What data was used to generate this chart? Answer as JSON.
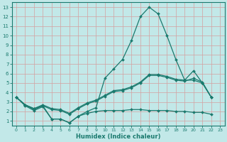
{
  "xlabel": "Humidex (Indice chaleur)",
  "x": [
    0,
    1,
    2,
    3,
    4,
    5,
    6,
    7,
    8,
    9,
    10,
    11,
    12,
    13,
    14,
    15,
    16,
    17,
    18,
    19,
    20,
    21,
    22,
    23
  ],
  "line_peak": [
    3.5,
    2.7,
    2.2,
    2.6,
    1.2,
    1.2,
    0.8,
    1.5,
    2.0,
    2.4,
    5.5,
    6.5,
    7.5,
    9.5,
    12.0,
    13.0,
    12.3,
    10.0,
    7.5,
    5.3,
    6.3,
    5.0,
    3.5,
    null
  ],
  "line_mid1": [
    3.5,
    2.7,
    2.3,
    2.6,
    2.2,
    2.1,
    1.7,
    2.3,
    2.8,
    3.1,
    3.6,
    4.1,
    4.2,
    4.5,
    5.0,
    5.8,
    5.8,
    5.6,
    5.3,
    5.2,
    5.5,
    5.1,
    3.5,
    null
  ],
  "line_mid2": [
    3.5,
    2.7,
    2.3,
    2.7,
    2.3,
    2.2,
    1.8,
    2.4,
    2.9,
    3.2,
    3.7,
    4.2,
    4.3,
    4.6,
    5.1,
    5.9,
    5.9,
    5.7,
    5.4,
    5.3,
    5.3,
    5.0,
    3.5,
    null
  ],
  "line_flat": [
    3.5,
    2.6,
    2.1,
    2.5,
    1.2,
    1.2,
    0.8,
    1.5,
    1.8,
    2.0,
    2.1,
    2.1,
    2.1,
    2.2,
    2.2,
    2.1,
    2.1,
    2.1,
    2.0,
    2.0,
    1.9,
    1.9,
    1.7,
    null
  ],
  "color": "#1a7a6e",
  "bg_color": "#c2e8e8",
  "grid_major_color": "#d4a0a0",
  "grid_minor_color": "#d8d8d8",
  "ylim": [
    0.5,
    13.5
  ],
  "xlim": [
    -0.5,
    23.5
  ],
  "yticks": [
    1,
    2,
    3,
    4,
    5,
    6,
    7,
    8,
    9,
    10,
    11,
    12,
    13
  ],
  "xticks": [
    0,
    1,
    2,
    3,
    4,
    5,
    6,
    7,
    8,
    9,
    10,
    11,
    12,
    13,
    14,
    15,
    16,
    17,
    18,
    19,
    20,
    21,
    22,
    23
  ]
}
